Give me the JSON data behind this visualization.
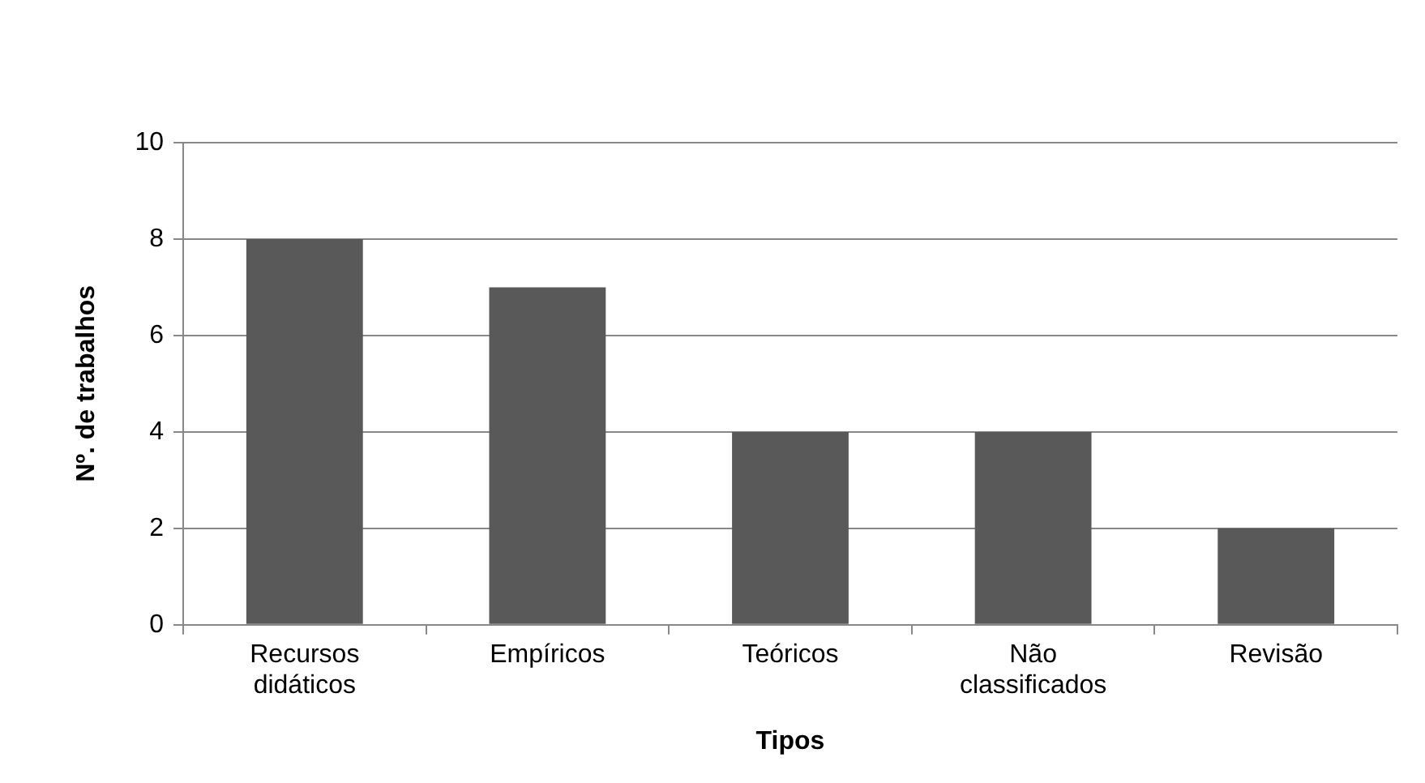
{
  "chart_data": {
    "type": "bar",
    "xlabel": "Tipos",
    "ylabel": "Nº. de trabalhos",
    "categories": [
      "Recursos didáticos",
      "Empíricos",
      "Teóricos",
      "Não classificados",
      "Revisão"
    ],
    "values": [
      8,
      7,
      4,
      4,
      2
    ],
    "color": "#595959",
    "ylim": [
      0,
      10
    ],
    "yticks": [
      0,
      2,
      4,
      6,
      8,
      10
    ],
    "grid": "y",
    "legend": false
  }
}
